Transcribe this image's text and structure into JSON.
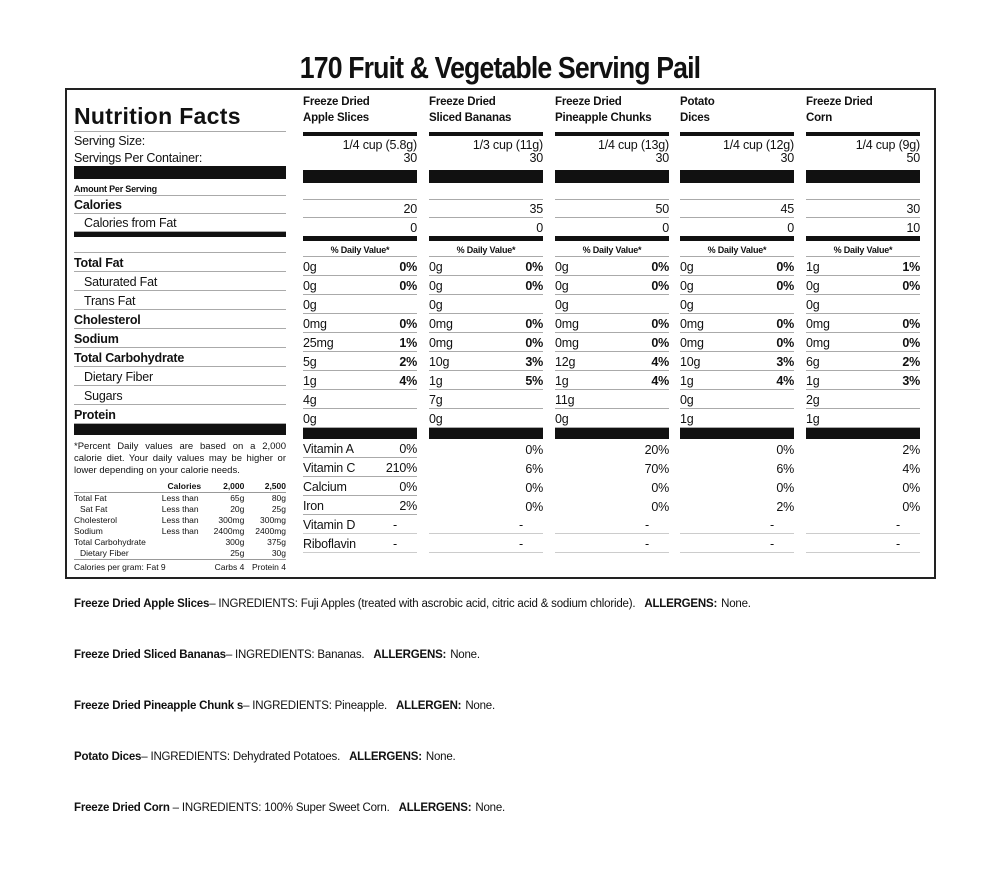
{
  "title": "170 Fruit & Vegetable Serving Pail",
  "label": {
    "heading": "Nutrition Facts",
    "serving_size": "Serving Size:",
    "servings_per_container": "Servings Per Container:",
    "amount_per_serving": "Amount Per Serving",
    "calories": "Calories",
    "calories_from_fat": "Calories from Fat",
    "daily_value": "% Daily Value*",
    "nutrients": [
      "Total Fat",
      "Saturated Fat",
      "Trans Fat",
      "Cholesterol",
      "Sodium",
      "Total Carbohydrate",
      "Dietary Fiber",
      "Sugars",
      "Protein"
    ],
    "vitamins": [
      "Vitamin A",
      "Vitamin C",
      "Calcium",
      "Iron",
      "Vitamin D",
      "Riboflavin"
    ],
    "footnote": "*Percent Daily values are based on a 2,000 calorie diet. Your daily values may be higher or lower depending on your calorie needs.",
    "footnote_table": {
      "header": [
        "",
        "Calories",
        "2,000",
        "2,500"
      ],
      "rows": [
        [
          "Total Fat",
          "Less than",
          "65g",
          "80g"
        ],
        [
          "Sat Fat",
          "Less than",
          "20g",
          "25g"
        ],
        [
          "Cholesterol",
          "Less than",
          "300mg",
          "300mg"
        ],
        [
          "Sodium",
          "Less than",
          "2400mg",
          "2400mg"
        ],
        [
          "Total Carbohydrate",
          "",
          "300g",
          "375g"
        ],
        [
          "Dietary Fiber",
          "",
          "25g",
          "30g"
        ]
      ],
      "calories_per_gram": [
        "Calories per gram: Fat 9",
        "Carbs 4",
        "Protein 4"
      ]
    }
  },
  "products": [
    {
      "name": [
        "Freeze Dried",
        "Apple Slices"
      ],
      "serving": "1/4 cup (5.8g)",
      "servings": "30",
      "calories": "20",
      "cal_fat": "0",
      "nutrients": [
        [
          "0g",
          "0%"
        ],
        [
          "0g",
          "0%"
        ],
        [
          "0g",
          ""
        ],
        [
          "0mg",
          "0%"
        ],
        [
          "25mg",
          "1%"
        ],
        [
          "5g",
          "2%"
        ],
        [
          "1g",
          "4%"
        ],
        [
          "4g",
          ""
        ],
        [
          "0g",
          ""
        ]
      ],
      "vitamins": [
        "0%",
        "210%",
        "0%",
        "2%",
        "-",
        "-"
      ]
    },
    {
      "name": [
        "Freeze Dried",
        "Sliced Bananas"
      ],
      "serving": "1/3 cup (11g)",
      "servings": "30",
      "calories": "35",
      "cal_fat": "0",
      "nutrients": [
        [
          "0g",
          "0%"
        ],
        [
          "0g",
          "0%"
        ],
        [
          "0g",
          ""
        ],
        [
          "0mg",
          "0%"
        ],
        [
          "0mg",
          "0%"
        ],
        [
          "10g",
          "3%"
        ],
        [
          "1g",
          "5%"
        ],
        [
          "7g",
          ""
        ],
        [
          "0g",
          ""
        ]
      ],
      "vitamins": [
        "0%",
        "6%",
        "0%",
        "0%",
        "-",
        "-"
      ]
    },
    {
      "name": [
        "Freeze Dried",
        "Pineapple Chunks"
      ],
      "serving": "1/4 cup (13g)",
      "servings": "30",
      "calories": "50",
      "cal_fat": "0",
      "nutrients": [
        [
          "0g",
          "0%"
        ],
        [
          "0g",
          "0%"
        ],
        [
          "0g",
          ""
        ],
        [
          "0mg",
          "0%"
        ],
        [
          "0mg",
          "0%"
        ],
        [
          "12g",
          "4%"
        ],
        [
          "1g",
          "4%"
        ],
        [
          "11g",
          ""
        ],
        [
          "0g",
          ""
        ]
      ],
      "vitamins": [
        "20%",
        "70%",
        "0%",
        "0%",
        "-",
        "-"
      ]
    },
    {
      "name": [
        "Potato",
        "Dices"
      ],
      "serving": "1/4 cup (12g)",
      "servings": "30",
      "calories": "45",
      "cal_fat": "0",
      "nutrients": [
        [
          "0g",
          "0%"
        ],
        [
          "0g",
          "0%"
        ],
        [
          "0g",
          ""
        ],
        [
          "0mg",
          "0%"
        ],
        [
          "0mg",
          "0%"
        ],
        [
          "10g",
          "3%"
        ],
        [
          "1g",
          "4%"
        ],
        [
          "0g",
          ""
        ],
        [
          "1g",
          ""
        ]
      ],
      "vitamins": [
        "0%",
        "6%",
        "0%",
        "2%",
        "-",
        "-"
      ]
    },
    {
      "name": [
        "Freeze Dried",
        "Corn"
      ],
      "serving": "1/4 cup (9g)",
      "servings": "50",
      "calories": "30",
      "cal_fat": "10",
      "nutrients": [
        [
          "1g",
          "1%"
        ],
        [
          "0g",
          "0%"
        ],
        [
          "0g",
          ""
        ],
        [
          "0mg",
          "0%"
        ],
        [
          "0mg",
          "0%"
        ],
        [
          "6g",
          "2%"
        ],
        [
          "1g",
          "3%"
        ],
        [
          "2g",
          ""
        ],
        [
          "1g",
          ""
        ]
      ],
      "vitamins": [
        "2%",
        "4%",
        "0%",
        "0%",
        "-",
        "-"
      ]
    }
  ],
  "ingredients": [
    {
      "product": "Freeze Dried Apple Slices",
      "text": "– INGREDIENTS: Fuji Apples (treated with ascrobic acid, citric acid & sodium chloride).",
      "allergen_label": "ALLERGENS:",
      "allergens": "None."
    },
    {
      "product": "Freeze Dried Sliced Bananas",
      "text": "– INGREDIENTS: Bananas.",
      "allergen_label": "ALLERGENS:",
      "allergens": "None."
    },
    {
      "product": "Freeze Dried Pineapple Chunk s",
      "text": "– INGREDIENTS: Pineapple.",
      "allergen_label": "ALLERGEN:",
      "allergens": "None."
    },
    {
      "product": "Potato Dices",
      "text": "– INGREDIENTS: Dehydrated Potatoes.",
      "allergen_label": "ALLERGENS:",
      "allergens": "None."
    },
    {
      "product": "Freeze Dried Corn",
      "text": " – INGREDIENTS: 100% Super Sweet Corn.",
      "allergen_label": "ALLERGENS:",
      "allergens": "None."
    }
  ]
}
